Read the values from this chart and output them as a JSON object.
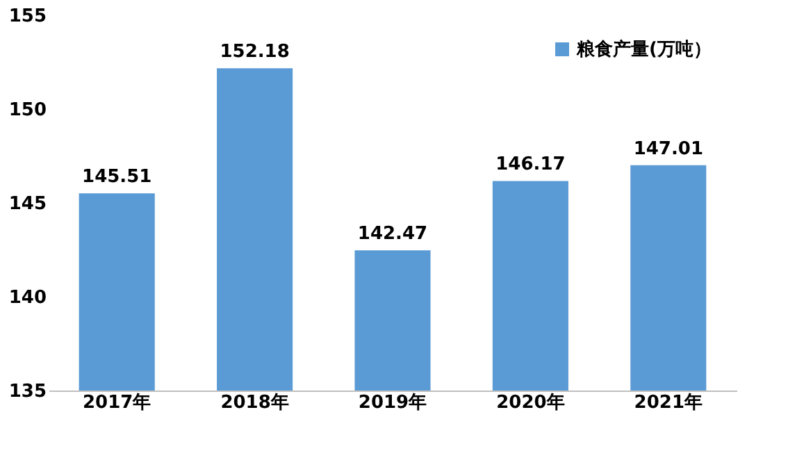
{
  "chart_data": {
    "type": "bar",
    "categories": [
      "2017年",
      "2018年",
      "2019年",
      "2020年",
      "2021年"
    ],
    "series": [
      {
        "name": "粮食产量(万吨）",
        "color": "#5b9bd5",
        "values": [
          145.51,
          152.18,
          142.47,
          146.17,
          147.01
        ]
      }
    ],
    "ylim": [
      135,
      155
    ],
    "yticks": [
      135,
      140,
      145,
      150,
      155
    ],
    "grid": false,
    "legend": "top right",
    "data_labels": true
  }
}
